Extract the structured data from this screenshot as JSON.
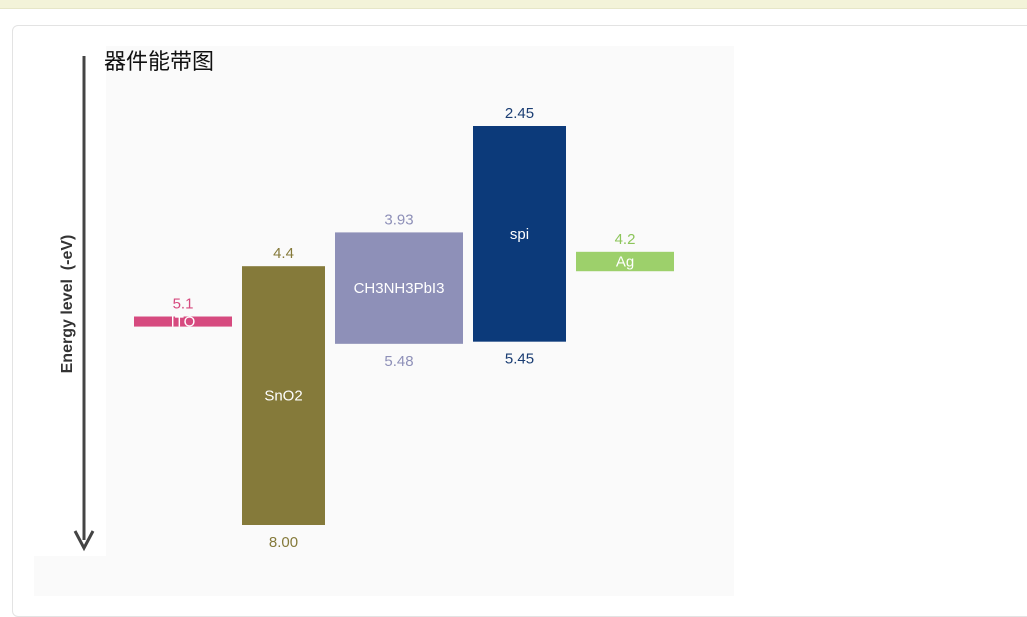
{
  "chart_data": {
    "type": "bar",
    "title": "器件能带图",
    "ylabel": "Energy level  (-eV)",
    "xlabel": "",
    "yaxis_direction": "down",
    "bars": [
      {
        "name": "ITO",
        "top": 5.1,
        "bottom": 5.24,
        "top_label": "5.1",
        "bottom_label": "",
        "color": "#d64a7f",
        "label_color": "#d64a7f"
      },
      {
        "name": "SnO2",
        "top": 4.4,
        "bottom": 8.0,
        "top_label": "4.4",
        "bottom_label": "8.00",
        "color": "#857a3a",
        "label_color": "#857a3a"
      },
      {
        "name": "CH3NH3PbI3",
        "top": 3.93,
        "bottom": 5.48,
        "top_label": "3.93",
        "bottom_label": "5.48",
        "color": "#8e90b8",
        "label_color": "#8e90b8"
      },
      {
        "name": "spi",
        "top": 2.45,
        "bottom": 5.45,
        "top_label": "2.45",
        "bottom_label": "5.45",
        "color": "#0c3a7a",
        "label_color": "#1a3d73"
      },
      {
        "name": "Ag",
        "top": 4.2,
        "bottom": 4.47,
        "top_label": "4.2",
        "bottom_label": "",
        "color": "#9dd06b",
        "label_color": "#8cc55a"
      }
    ]
  }
}
